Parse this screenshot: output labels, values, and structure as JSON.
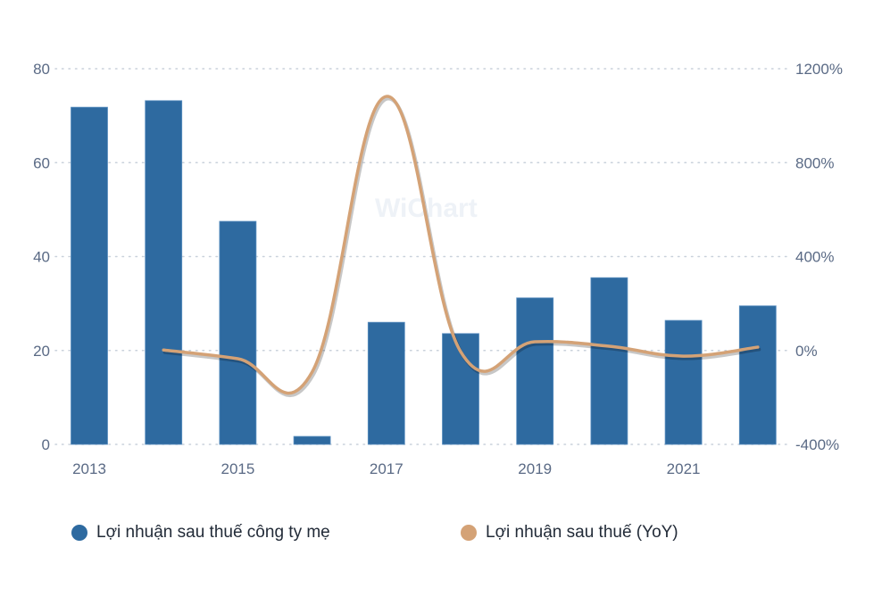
{
  "chart_data": {
    "type": "bar",
    "title": "",
    "xlabel": "",
    "ylabel": "",
    "categories": [
      "2013",
      "2014",
      "2015",
      "2016",
      "2017",
      "2018",
      "2019",
      "2020",
      "2021",
      "2022"
    ],
    "x_tick_labels": [
      "2013",
      "2015",
      "2017",
      "2019",
      "2021"
    ],
    "series": [
      {
        "name": "Lợi nhuận sau thuế công ty mẹ",
        "type": "bar",
        "axis": "left",
        "color": "#2e6aa0",
        "values": [
          71.8,
          73.2,
          47.5,
          1.7,
          26.0,
          23.6,
          31.2,
          35.5,
          26.4,
          29.5
        ]
      },
      {
        "name": "Lợi nhuận sau thuế (YoY)",
        "type": "line",
        "axis": "right",
        "color": "#d4a276",
        "values": [
          null,
          2,
          -35,
          -92,
          1082,
          -5,
          37,
          18,
          -24,
          14
        ]
      }
    ],
    "left_axis": {
      "ylim": [
        0,
        80
      ],
      "ticks": [
        "0",
        "20",
        "40",
        "60",
        "80"
      ]
    },
    "right_axis": {
      "ylim": [
        -400,
        1200
      ],
      "ticks": [
        "-400%",
        "0%",
        "400%",
        "800%",
        "1200%"
      ]
    },
    "grid": true,
    "legend_position": "bottom"
  },
  "watermark": "WiChart",
  "legend": {
    "items": [
      {
        "label": "Lợi nhuận sau thuế công ty mẹ",
        "color": "#2e6aa0"
      },
      {
        "label": "Lợi nhuận sau thuế (YoY)",
        "color": "#d4a276"
      }
    ]
  }
}
